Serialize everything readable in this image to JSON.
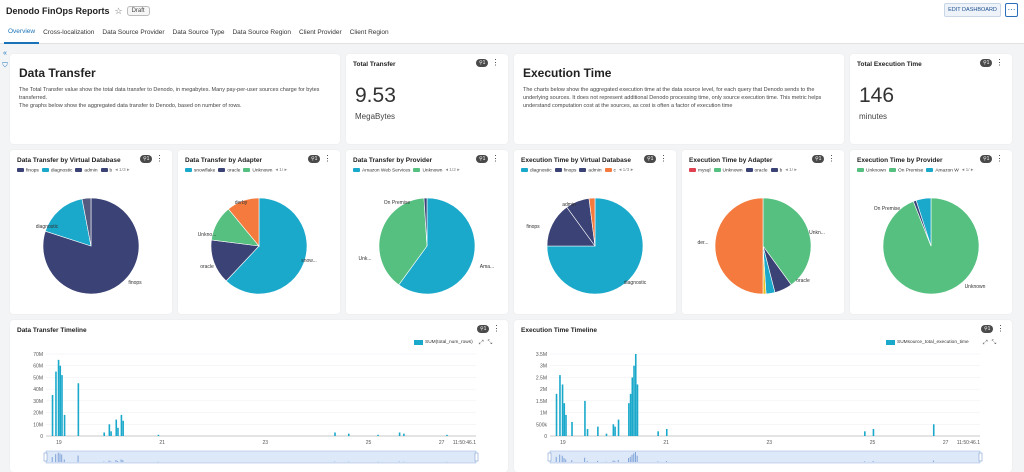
{
  "app": {
    "title": "Denodo FinOps Reports",
    "status": "Draft",
    "edit_label": "EDIT DASHBOARD",
    "more_label": "⋯",
    "star": "☆"
  },
  "tabs": [
    {
      "label": "Overview",
      "active": true
    },
    {
      "label": "Cross-localization"
    },
    {
      "label": "Data Source Provider"
    },
    {
      "label": "Data Source Type"
    },
    {
      "label": "Data Source Region"
    },
    {
      "label": "Client Provider"
    },
    {
      "label": "Client Region"
    }
  ],
  "rail": {
    "expand": "«",
    "filter": "⛉"
  },
  "text_cards": [
    {
      "title": "Data Transfer",
      "body": "The Total Transfer value show the total data transfer to Denodo, in megabytes. Many pay-per-user sources charge for bytes transferred.\nThe graphs below show the aggregated data transfer to Denodo, based on number of rows."
    },
    {
      "title": "Execution Time",
      "body": "The charts below show the aggregated execution time at the data source level, for each query that Denodo sends to the underlying sources. It does not represent additional Denodo processing time, only source execution time. This metric helps understand computation cost at the sources, as cost is often a factor of execution time"
    }
  ],
  "kpis": [
    {
      "title": "Total Transfer",
      "value": "9.53",
      "unit": "MegaBytes",
      "badge": "⚲1",
      "menu": "⋮"
    },
    {
      "title": "Total Execution Time",
      "value": "146",
      "unit": "minutes",
      "badge": "⚲1",
      "menu": "⋮"
    }
  ],
  "colors": {
    "navy": "#3b4275",
    "teal": "#1aa9cb",
    "green": "#55c07f",
    "orange": "#f47a3d",
    "red": "#e04050",
    "grey": "#9aa0a8"
  },
  "pies": [
    {
      "title": "Data Transfer by Virtual Database",
      "badge": "⚲1",
      "menu": "⋮",
      "pager": "1/3",
      "legend": [
        {
          "name": "finops",
          "color": "#3b4275"
        },
        {
          "name": "diagnostic",
          "color": "#1aa9cb"
        },
        {
          "name": "admin",
          "color": "#3b4275"
        },
        {
          "name": "b",
          "color": "#3b4275"
        }
      ],
      "chart_data": {
        "type": "pie",
        "slices": [
          {
            "label": "finops",
            "value": 80,
            "color": "#3b4275"
          },
          {
            "label": "diagnostic",
            "value": 17,
            "color": "#1aa9cb"
          },
          {
            "label": "",
            "value": 3,
            "color": "#555a80"
          }
        ]
      },
      "labels": [
        {
          "text": "diagnostic"
        },
        {
          "text": "finops"
        }
      ]
    },
    {
      "title": "Data Transfer by Adapter",
      "badge": "⚲1",
      "menu": "⋮",
      "pager": "1/",
      "legend": [
        {
          "name": "snowflake",
          "color": "#1aa9cb"
        },
        {
          "name": "oracle",
          "color": "#3b4275"
        },
        {
          "name": "Unknown",
          "color": "#55c07f"
        }
      ],
      "chart_data": {
        "type": "pie",
        "slices": [
          {
            "label": "snow...",
            "value": 62,
            "color": "#1aa9cb"
          },
          {
            "label": "oracle",
            "value": 15,
            "color": "#3b4275"
          },
          {
            "label": "Unkno...",
            "value": 12,
            "color": "#55c07f"
          },
          {
            "label": "derby",
            "value": 11,
            "color": "#f47a3d"
          }
        ]
      },
      "labels": [
        {
          "text": "derby"
        },
        {
          "text": "Unkno..."
        },
        {
          "text": "oracle"
        },
        {
          "text": "snow..."
        }
      ]
    },
    {
      "title": "Data Transfer by Provider",
      "badge": "⚲1",
      "menu": "⋮",
      "pager": "1/2",
      "legend": [
        {
          "name": "Amazon Web Services",
          "color": "#1aa9cb"
        },
        {
          "name": "Unknown",
          "color": "#55c07f"
        }
      ],
      "chart_data": {
        "type": "pie",
        "slices": [
          {
            "label": "Ama...",
            "value": 60,
            "color": "#1aa9cb"
          },
          {
            "label": "Unk...",
            "value": 39,
            "color": "#55c07f"
          },
          {
            "label": "On Premise",
            "value": 1,
            "color": "#3b4275"
          }
        ]
      },
      "labels": [
        {
          "text": "On Premise"
        },
        {
          "text": "Unk..."
        },
        {
          "text": "Ama..."
        }
      ]
    },
    {
      "title": "Execution Time by Virtual Database",
      "badge": "⚲1",
      "menu": "⋮",
      "pager": "1/3",
      "legend": [
        {
          "name": "diagnostic",
          "color": "#1aa9cb"
        },
        {
          "name": "finops",
          "color": "#3b4275"
        },
        {
          "name": "admin",
          "color": "#3b4275"
        },
        {
          "name": "c",
          "color": "#f47a3d"
        }
      ],
      "chart_data": {
        "type": "pie",
        "slices": [
          {
            "label": "diagnostic",
            "value": 75,
            "color": "#1aa9cb"
          },
          {
            "label": "finops",
            "value": 15,
            "color": "#3b4275"
          },
          {
            "label": "admin",
            "value": 8,
            "color": "#3b4275"
          },
          {
            "label": "",
            "value": 2,
            "color": "#f47a3d"
          }
        ]
      },
      "labels": [
        {
          "text": "admin"
        },
        {
          "text": "finops"
        },
        {
          "text": "diagnostic"
        }
      ]
    },
    {
      "title": "Execution Time by Adapter",
      "badge": "⚲1",
      "menu": "⋮",
      "pager": "1/",
      "legend": [
        {
          "name": "mysql",
          "color": "#e04050"
        },
        {
          "name": "Unknown",
          "color": "#55c07f"
        },
        {
          "name": "oracle",
          "color": "#3b4275"
        },
        {
          "name": "b",
          "color": "#3b4275"
        }
      ],
      "chart_data": {
        "type": "pie",
        "slices": [
          {
            "label": "Unkn...",
            "value": 40,
            "color": "#55c07f"
          },
          {
            "label": "oracle",
            "value": 6,
            "color": "#3b4275"
          },
          {
            "label": "",
            "value": 3,
            "color": "#1aa9cb"
          },
          {
            "label": "",
            "value": 1,
            "color": "#e8c020"
          },
          {
            "label": "der...",
            "value": 50,
            "color": "#f47a3d"
          }
        ]
      },
      "labels": [
        {
          "text": "Unkn..."
        },
        {
          "text": "der..."
        },
        {
          "text": "oracle"
        }
      ]
    },
    {
      "title": "Execution Time by Provider",
      "badge": "⚲1",
      "menu": "⋮",
      "pager": "1/",
      "legend": [
        {
          "name": "Unknown",
          "color": "#55c07f"
        },
        {
          "name": "On Premise",
          "color": "#55c07f"
        },
        {
          "name": "Amazon W",
          "color": "#1aa9cb"
        }
      ],
      "chart_data": {
        "type": "pie",
        "slices": [
          {
            "label": "Unknown",
            "value": 94,
            "color": "#55c07f"
          },
          {
            "label": "On Premise",
            "value": 1,
            "color": "#3b4275"
          },
          {
            "label": "",
            "value": 5,
            "color": "#1aa9cb"
          }
        ]
      },
      "labels": [
        {
          "text": "On Premise"
        },
        {
          "text": "Unknown"
        }
      ]
    }
  ],
  "timelines": [
    {
      "title": "Data Transfer Timeline",
      "badge": "⚲1",
      "menu": "⋮",
      "legend": "SUM(total_num_rows)",
      "tools": "⤢ ⤡",
      "chart_data": {
        "type": "bar",
        "series": [
          {
            "name": "SUM(total_num_rows)"
          }
        ],
        "yticks": [
          "70M",
          "60M",
          "50M",
          "40M",
          "30M",
          "20M",
          "10M",
          "0"
        ],
        "xticks": [
          "19",
          "21",
          "23",
          "25",
          "27",
          "11:50:46.1"
        ],
        "ylim": [
          0,
          70000000
        ],
        "bars": [
          [
            0.2,
            35
          ],
          [
            0.6,
            55
          ],
          [
            0.9,
            65
          ],
          [
            1.1,
            60
          ],
          [
            1.3,
            52
          ],
          [
            1.6,
            18
          ],
          [
            3.2,
            45
          ],
          [
            6.2,
            3
          ],
          [
            6.8,
            10
          ],
          [
            7.0,
            4
          ],
          [
            7.6,
            14
          ],
          [
            7.8,
            7
          ],
          [
            8.2,
            18
          ],
          [
            8.4,
            13
          ],
          [
            12.5,
            1
          ],
          [
            33,
            3
          ],
          [
            34.6,
            2
          ],
          [
            38,
            1
          ],
          [
            40.5,
            3
          ],
          [
            41,
            2
          ],
          [
            46,
            1
          ]
        ],
        "xrange": [
          0,
          49
        ]
      }
    },
    {
      "title": "Execution Time Timeline",
      "badge": "⚲1",
      "menu": "⋮",
      "legend": "SUMsource_total_execution_time",
      "tools": "⤢ ⤡",
      "chart_data": {
        "type": "bar",
        "series": [
          {
            "name": "SUMsource_total_execution_time"
          }
        ],
        "yticks": [
          "3.5M",
          "3M",
          "2.5M",
          "2M",
          "1.5M",
          "1M",
          "500k",
          "0"
        ],
        "xticks": [
          "19",
          "21",
          "23",
          "25",
          "27",
          "11:50:46.1"
        ],
        "ylim": [
          0,
          3500000
        ],
        "bars": [
          [
            0.2,
            1.8
          ],
          [
            0.6,
            2.6
          ],
          [
            0.9,
            2.2
          ],
          [
            1.1,
            1.4
          ],
          [
            1.3,
            0.9
          ],
          [
            2.0,
            0.6
          ],
          [
            3.5,
            1.5
          ],
          [
            3.8,
            0.3
          ],
          [
            5.0,
            0.4
          ],
          [
            6.0,
            0.1
          ],
          [
            6.8,
            0.5
          ],
          [
            7.0,
            0.4
          ],
          [
            7.4,
            0.7
          ],
          [
            8.6,
            1.4
          ],
          [
            8.8,
            1.8
          ],
          [
            9.0,
            2.5
          ],
          [
            9.2,
            3.0
          ],
          [
            9.4,
            3.5
          ],
          [
            9.6,
            2.2
          ],
          [
            12,
            0.2
          ],
          [
            13,
            0.3
          ],
          [
            36,
            0.2
          ],
          [
            37,
            0.3
          ],
          [
            44,
            0.5
          ]
        ],
        "xrange": [
          0,
          49
        ]
      }
    }
  ]
}
